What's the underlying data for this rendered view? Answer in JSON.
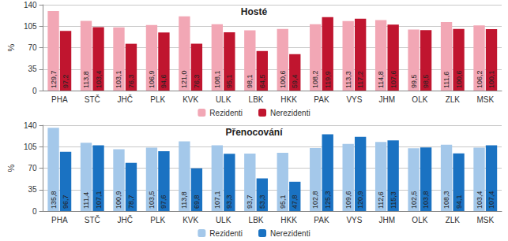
{
  "chart_data": [
    {
      "type": "bar",
      "title": "Hosté",
      "y_label": "%",
      "categories": [
        "PHA",
        "STČ",
        "JHČ",
        "PLK",
        "KVK",
        "ULK",
        "LBK",
        "HKK",
        "PAK",
        "VYS",
        "JHM",
        "OLK",
        "ZLK",
        "MSK"
      ],
      "series": [
        {
          "name": "Rezidenti",
          "color": "#f2a7b5",
          "values": [
            129.7,
            113.8,
            103.1,
            106.9,
            121.0,
            108.1,
            98.1,
            100.6,
            108.2,
            113.3,
            114.8,
            99.5,
            111.6,
            106.2
          ],
          "value_labels": [
            "129,7",
            "113,8",
            "103,1",
            "106,9",
            "121,0",
            "108,1",
            "98,1",
            "100,6",
            "108,2",
            "113,3",
            "114,8",
            "99,5",
            "111,6",
            "106,2"
          ]
        },
        {
          "name": "Nerezidenti",
          "color": "#c0152f",
          "values": [
            97.2,
            103.4,
            76.3,
            94.6,
            76.3,
            95.1,
            64.5,
            59.4,
            119.9,
            117.2,
            107.6,
            98.5,
            100.6,
            100.1
          ],
          "value_labels": [
            "97,2",
            "103,4",
            "76,3",
            "94,6",
            "76,3",
            "95,1",
            "64,5",
            "59,4",
            "119,9",
            "117,2",
            "107,6",
            "98,5",
            "100,6",
            "100,1"
          ]
        }
      ],
      "ylim": [
        0,
        140
      ],
      "yticks": [
        0,
        35,
        70,
        105,
        140
      ],
      "grid": true,
      "legend": "bottom",
      "data_labels": true
    },
    {
      "type": "bar",
      "title": "Přenocování",
      "y_label": "%",
      "categories": [
        "PHA",
        "STČ",
        "JHČ",
        "PLK",
        "KVK",
        "ULK",
        "LBK",
        "HKK",
        "PAK",
        "VYS",
        "JHM",
        "OLK",
        "ZLK",
        "MSK"
      ],
      "series": [
        {
          "name": "Rezidenti",
          "color": "#a4c8ea",
          "values": [
            135.8,
            111.4,
            100.9,
            103.5,
            113.8,
            107.1,
            93.7,
            95.1,
            102.8,
            109.6,
            112.6,
            102.5,
            108.3,
            103.4
          ],
          "value_labels": [
            "135,8",
            "111,4",
            "100,9",
            "103,5",
            "113,8",
            "107,1",
            "93,7",
            "95,1",
            "102,8",
            "109,6",
            "112,6",
            "102,5",
            "108,3",
            "103,4"
          ]
        },
        {
          "name": "Nerezidenti",
          "color": "#1a72c2",
          "values": [
            96.7,
            107.1,
            78.7,
            97.6,
            69.8,
            93.3,
            53.3,
            47.8,
            125.3,
            120.9,
            115.3,
            103.8,
            94.1,
            107.4
          ],
          "value_labels": [
            "96,7",
            "107,1",
            "78,7",
            "97,6",
            "69,8",
            "93,3",
            "53,3",
            "47,8",
            "125,3",
            "120,9",
            "115,3",
            "103,8",
            "94,1",
            "107,4"
          ]
        }
      ],
      "ylim": [
        0,
        140
      ],
      "yticks": [
        0,
        35,
        70,
        105,
        140
      ],
      "grid": true,
      "legend": "bottom",
      "data_labels": true
    }
  ]
}
